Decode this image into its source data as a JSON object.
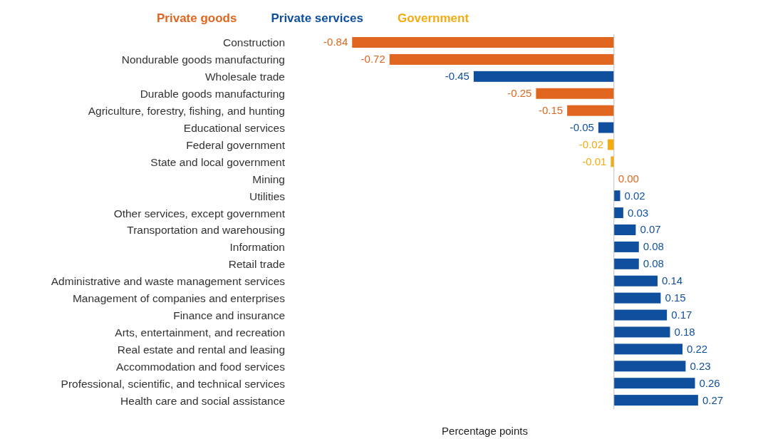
{
  "chart_data": {
    "type": "bar",
    "orientation": "horizontal",
    "stacked": true,
    "xlabel": "Percentage points",
    "legend": "top",
    "data_labels": true,
    "categories": [
      "Construction",
      "Nondurable goods manufacturing",
      "Wholesale trade",
      "Durable goods manufacturing",
      "Agriculture, forestry, fishing, and hunting",
      "Educational services",
      "Federal government",
      "State and local government",
      "Mining",
      "Utilities",
      "Other services, except government",
      "Transportation and warehousing",
      "Information",
      "Retail trade",
      "Administrative and waste management services",
      "Management of companies and enterprises",
      "Finance and insurance",
      "Arts, entertainment, and recreation",
      "Real estate and rental and leasing",
      "Accommodation and food services",
      "Professional, scientific, and technical services",
      "Health care and social assistance"
    ],
    "series": [
      {
        "name": "Private goods",
        "color": "#e0661f",
        "values": [
          -0.84,
          -0.72,
          null,
          -0.25,
          -0.15,
          null,
          null,
          null,
          0.0,
          null,
          null,
          null,
          null,
          null,
          null,
          null,
          null,
          null,
          null,
          null,
          null,
          null
        ],
        "value_labels": [
          "-0.84",
          "-0.72",
          null,
          "-0.25",
          "-0.15",
          null,
          null,
          null,
          "0.00",
          null,
          null,
          null,
          null,
          null,
          null,
          null,
          null,
          null,
          null,
          null,
          null,
          null
        ]
      },
      {
        "name": "Private services",
        "color": "#0e4f9e",
        "values": [
          null,
          null,
          -0.45,
          null,
          null,
          -0.05,
          null,
          null,
          null,
          0.02,
          0.03,
          0.07,
          0.08,
          0.08,
          0.14,
          0.15,
          0.17,
          0.18,
          0.22,
          0.23,
          0.26,
          0.27
        ],
        "value_labels": [
          null,
          null,
          "-0.45",
          null,
          null,
          "-0.05",
          null,
          null,
          null,
          "0.02",
          "0.03",
          "0.07",
          "0.08",
          "0.08",
          "0.14",
          "0.15",
          "0.17",
          "0.18",
          "0.22",
          "0.23",
          "0.26",
          "0.27"
        ]
      },
      {
        "name": "Government",
        "color": "#f5ab0f",
        "values": [
          null,
          null,
          null,
          null,
          null,
          null,
          -0.02,
          -0.01,
          null,
          null,
          null,
          null,
          null,
          null,
          null,
          null,
          null,
          null,
          null,
          null,
          null,
          null
        ],
        "value_labels": [
          null,
          null,
          null,
          null,
          null,
          null,
          "-0.02",
          "-0.01",
          null,
          null,
          null,
          null,
          null,
          null,
          null,
          null,
          null,
          null,
          null,
          null,
          null,
          null
        ]
      }
    ]
  }
}
